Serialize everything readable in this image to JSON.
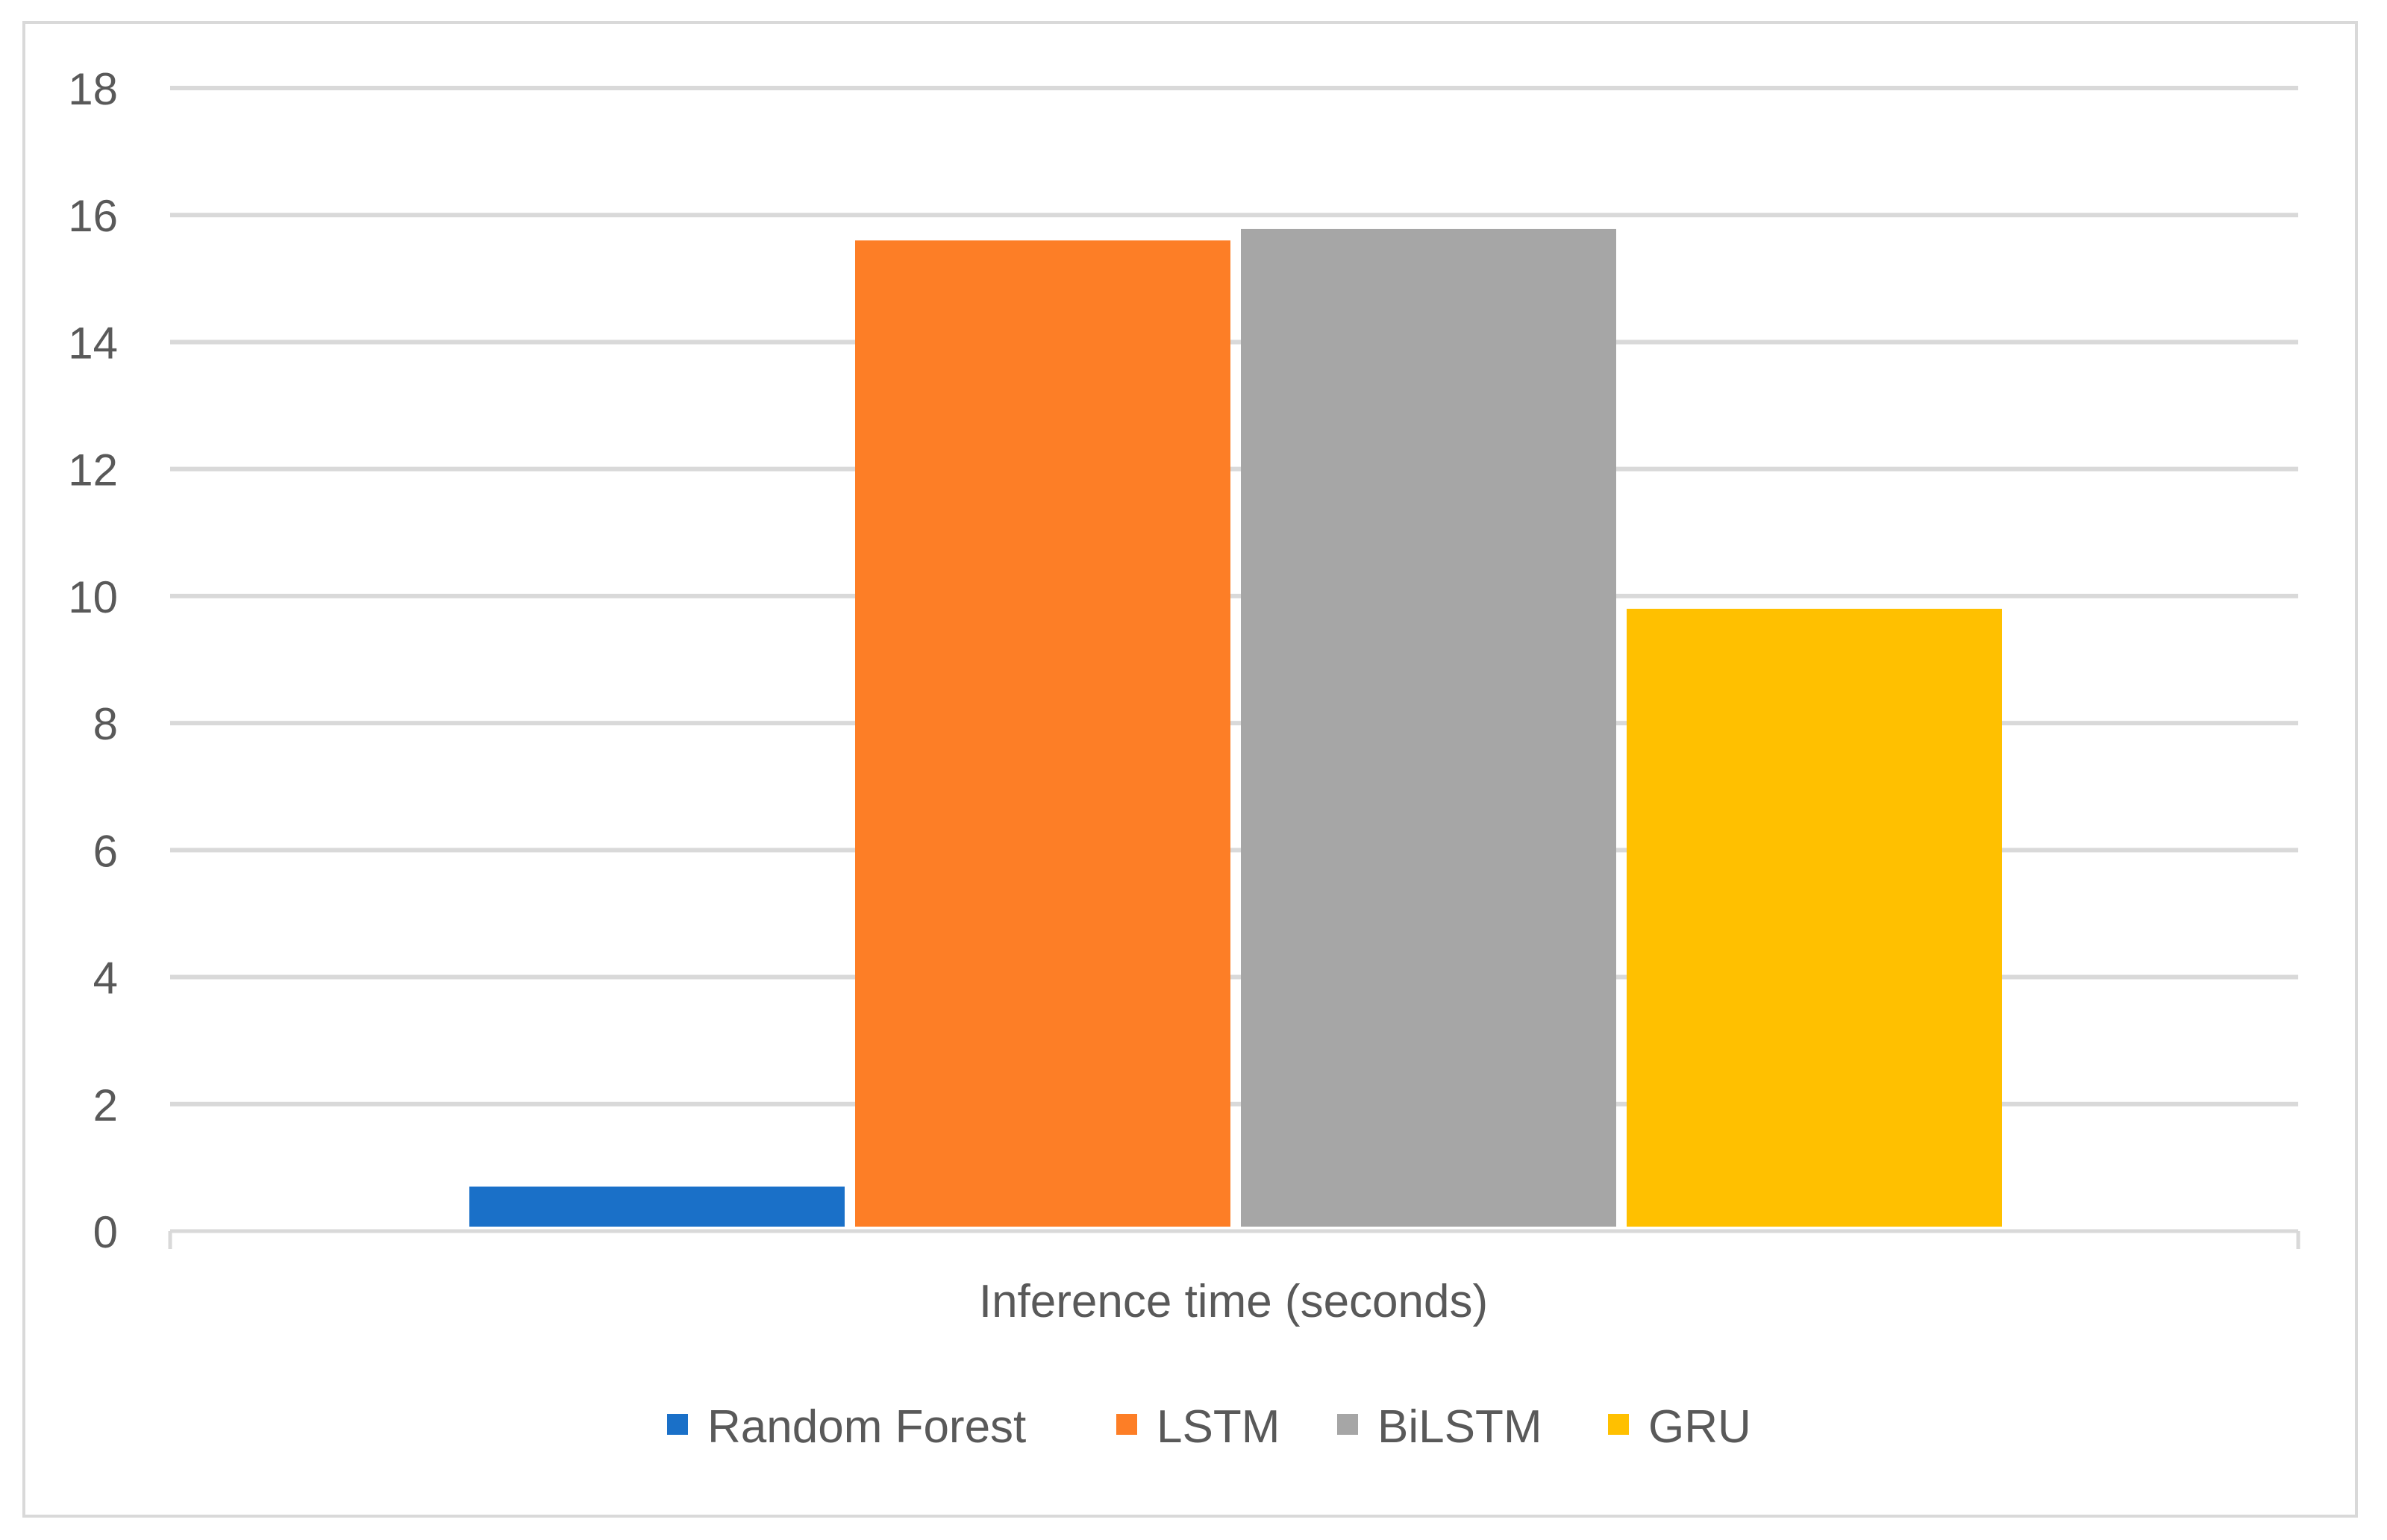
{
  "chart_data": {
    "type": "bar",
    "title": "",
    "xlabel": "Inference time (seconds)",
    "ylabel": "",
    "ylim": [
      0,
      18
    ],
    "yticks": [
      0,
      2,
      4,
      6,
      8,
      10,
      12,
      14,
      16,
      18
    ],
    "grid": true,
    "legend_position": "bottom",
    "categories": [
      "Inference time (seconds)"
    ],
    "series": [
      {
        "name": "Random Forest",
        "color": "#1a70c8",
        "values": [
          0.7
        ]
      },
      {
        "name": "LSTM",
        "color": "#fd7e26",
        "values": [
          15.6
        ]
      },
      {
        "name": "BiLSTM",
        "color": "#a6a6a6",
        "values": [
          15.78
        ]
      },
      {
        "name": "GRU",
        "color": "#ffc000",
        "values": [
          9.8
        ]
      }
    ]
  }
}
